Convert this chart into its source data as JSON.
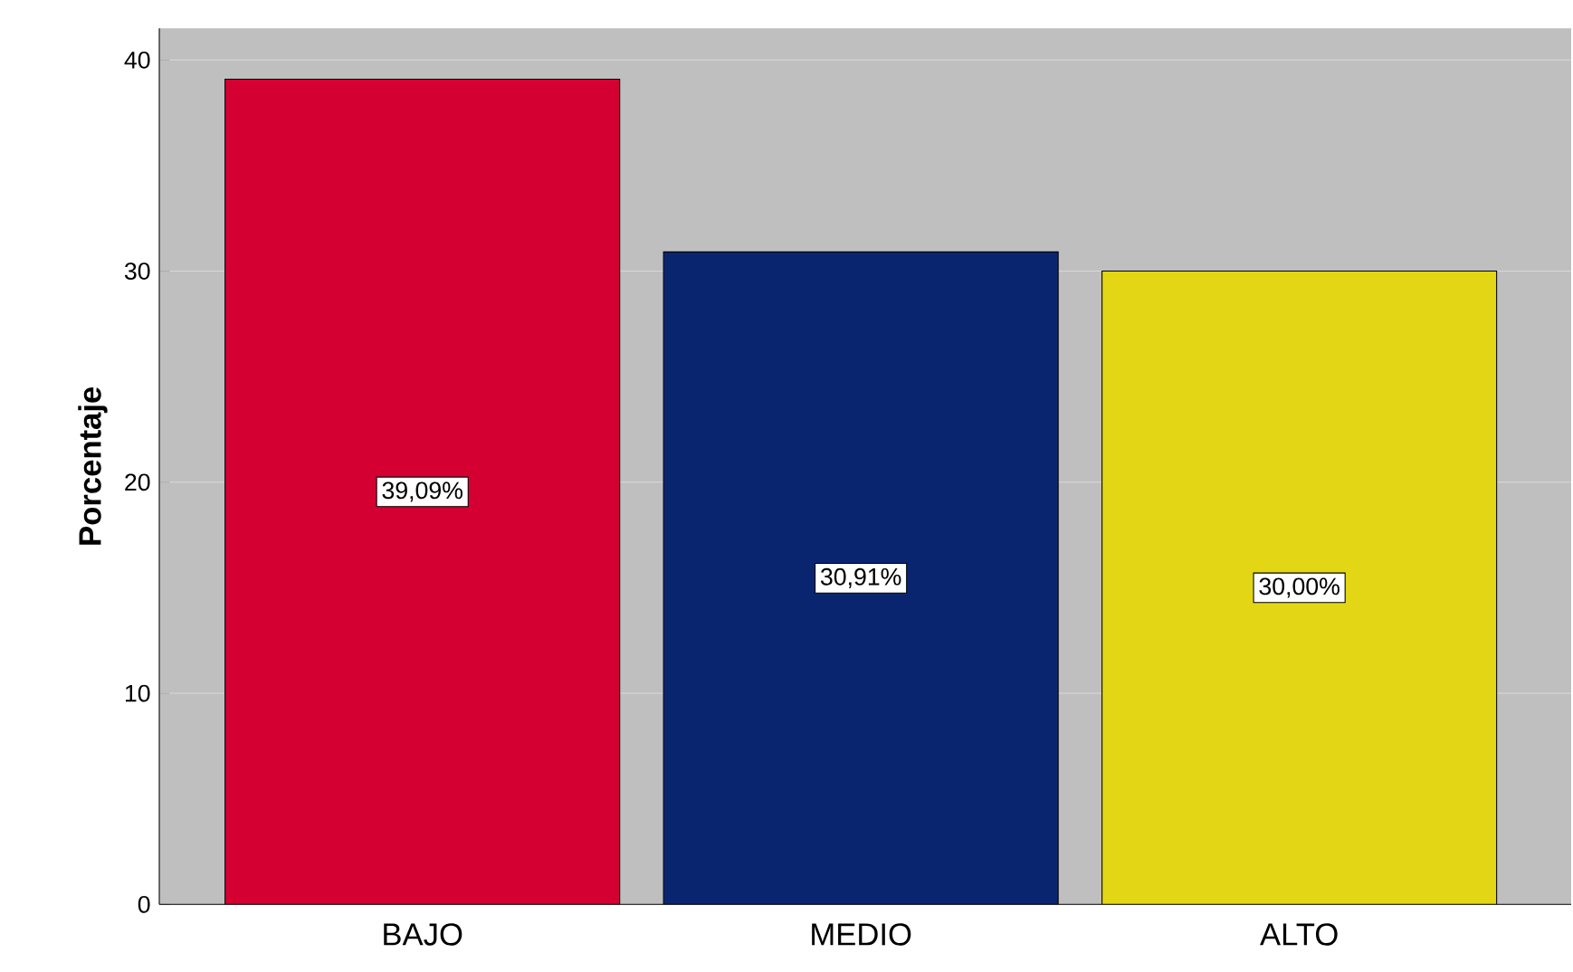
{
  "chart_data": {
    "type": "bar",
    "ylabel": "Porcentaje",
    "categories": [
      "BAJO",
      "MEDIO",
      "ALTO"
    ],
    "values": [
      39.09,
      30.91,
      30.0
    ],
    "value_labels": [
      "39,09%",
      "30,91%",
      "30,00%"
    ],
    "colors": [
      "#d50032",
      "#0a2570",
      "#e3d614"
    ],
    "ylim": [
      0,
      41.5
    ],
    "yticks": [
      0,
      10,
      20,
      30,
      40
    ],
    "grid": "y"
  }
}
